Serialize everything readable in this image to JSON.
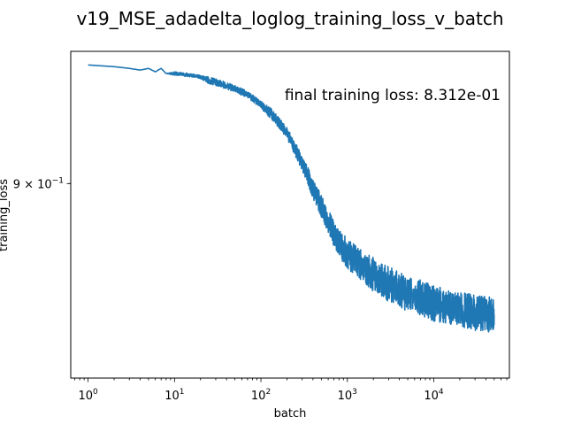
{
  "chart_data": {
    "type": "line",
    "title": "v19_MSE_adadelta_loglog_training_loss_v_batch",
    "xlabel": "batch",
    "ylabel": "training_loss",
    "x_scale": "log",
    "y_scale": "log",
    "xlim": [
      0.63,
      75000
    ],
    "ylim": [
      0.8,
      0.975
    ],
    "grid": false,
    "legend": "none",
    "annotation": "final training loss: 8.312e-01",
    "x_ticks": [
      {
        "value": 1,
        "base": "10",
        "exp": "0"
      },
      {
        "value": 10,
        "base": "10",
        "exp": "1"
      },
      {
        "value": 100,
        "base": "10",
        "exp": "2"
      },
      {
        "value": 1000,
        "base": "10",
        "exp": "3"
      },
      {
        "value": 10000,
        "base": "10",
        "exp": "4"
      }
    ],
    "y_ticks": [
      {
        "value": 0.9,
        "mantissa": "9",
        "times": "×",
        "base": "10",
        "exp": "−1"
      }
    ],
    "series": [
      {
        "color": "#1f77b4",
        "x": [
          1,
          2,
          3,
          4,
          5,
          6,
          7,
          8,
          10,
          15,
          20,
          25,
          30,
          40,
          50,
          70,
          100,
          130,
          160,
          200,
          250,
          300,
          350,
          400,
          500,
          600,
          700,
          800,
          1000,
          1300,
          1600,
          2000,
          2500,
          3000,
          4000,
          5000,
          6000,
          8000,
          10000,
          13000,
          16000,
          20000,
          25000,
          30000,
          40000,
          50000
        ],
        "y": [
          0.967,
          0.966,
          0.965,
          0.964,
          0.965,
          0.963,
          0.965,
          0.962,
          0.962,
          0.961,
          0.96,
          0.958,
          0.957,
          0.955,
          0.953,
          0.95,
          0.944,
          0.939,
          0.934,
          0.928,
          0.919,
          0.911,
          0.904,
          0.897,
          0.888,
          0.88,
          0.873,
          0.868,
          0.863,
          0.858,
          0.855,
          0.852,
          0.849,
          0.847,
          0.844,
          0.842,
          0.841,
          0.839,
          0.837,
          0.836,
          0.835,
          0.834,
          0.833,
          0.832,
          0.832,
          0.831
        ],
        "noise_band": [
          0,
          0,
          0,
          0,
          0,
          0,
          0,
          0,
          0.001,
          0.001,
          0.001,
          0.002,
          0.002,
          0.002,
          0.002,
          0.002,
          0.002,
          0.003,
          0.003,
          0.003,
          0.004,
          0.004,
          0.005,
          0.005,
          0.006,
          0.006,
          0.007,
          0.007,
          0.008,
          0.008,
          0.008,
          0.009,
          0.009,
          0.009,
          0.009,
          0.009,
          0.009,
          0.009,
          0.009,
          0.009,
          0.009,
          0.009,
          0.009,
          0.009,
          0.009,
          0.009
        ]
      }
    ]
  }
}
